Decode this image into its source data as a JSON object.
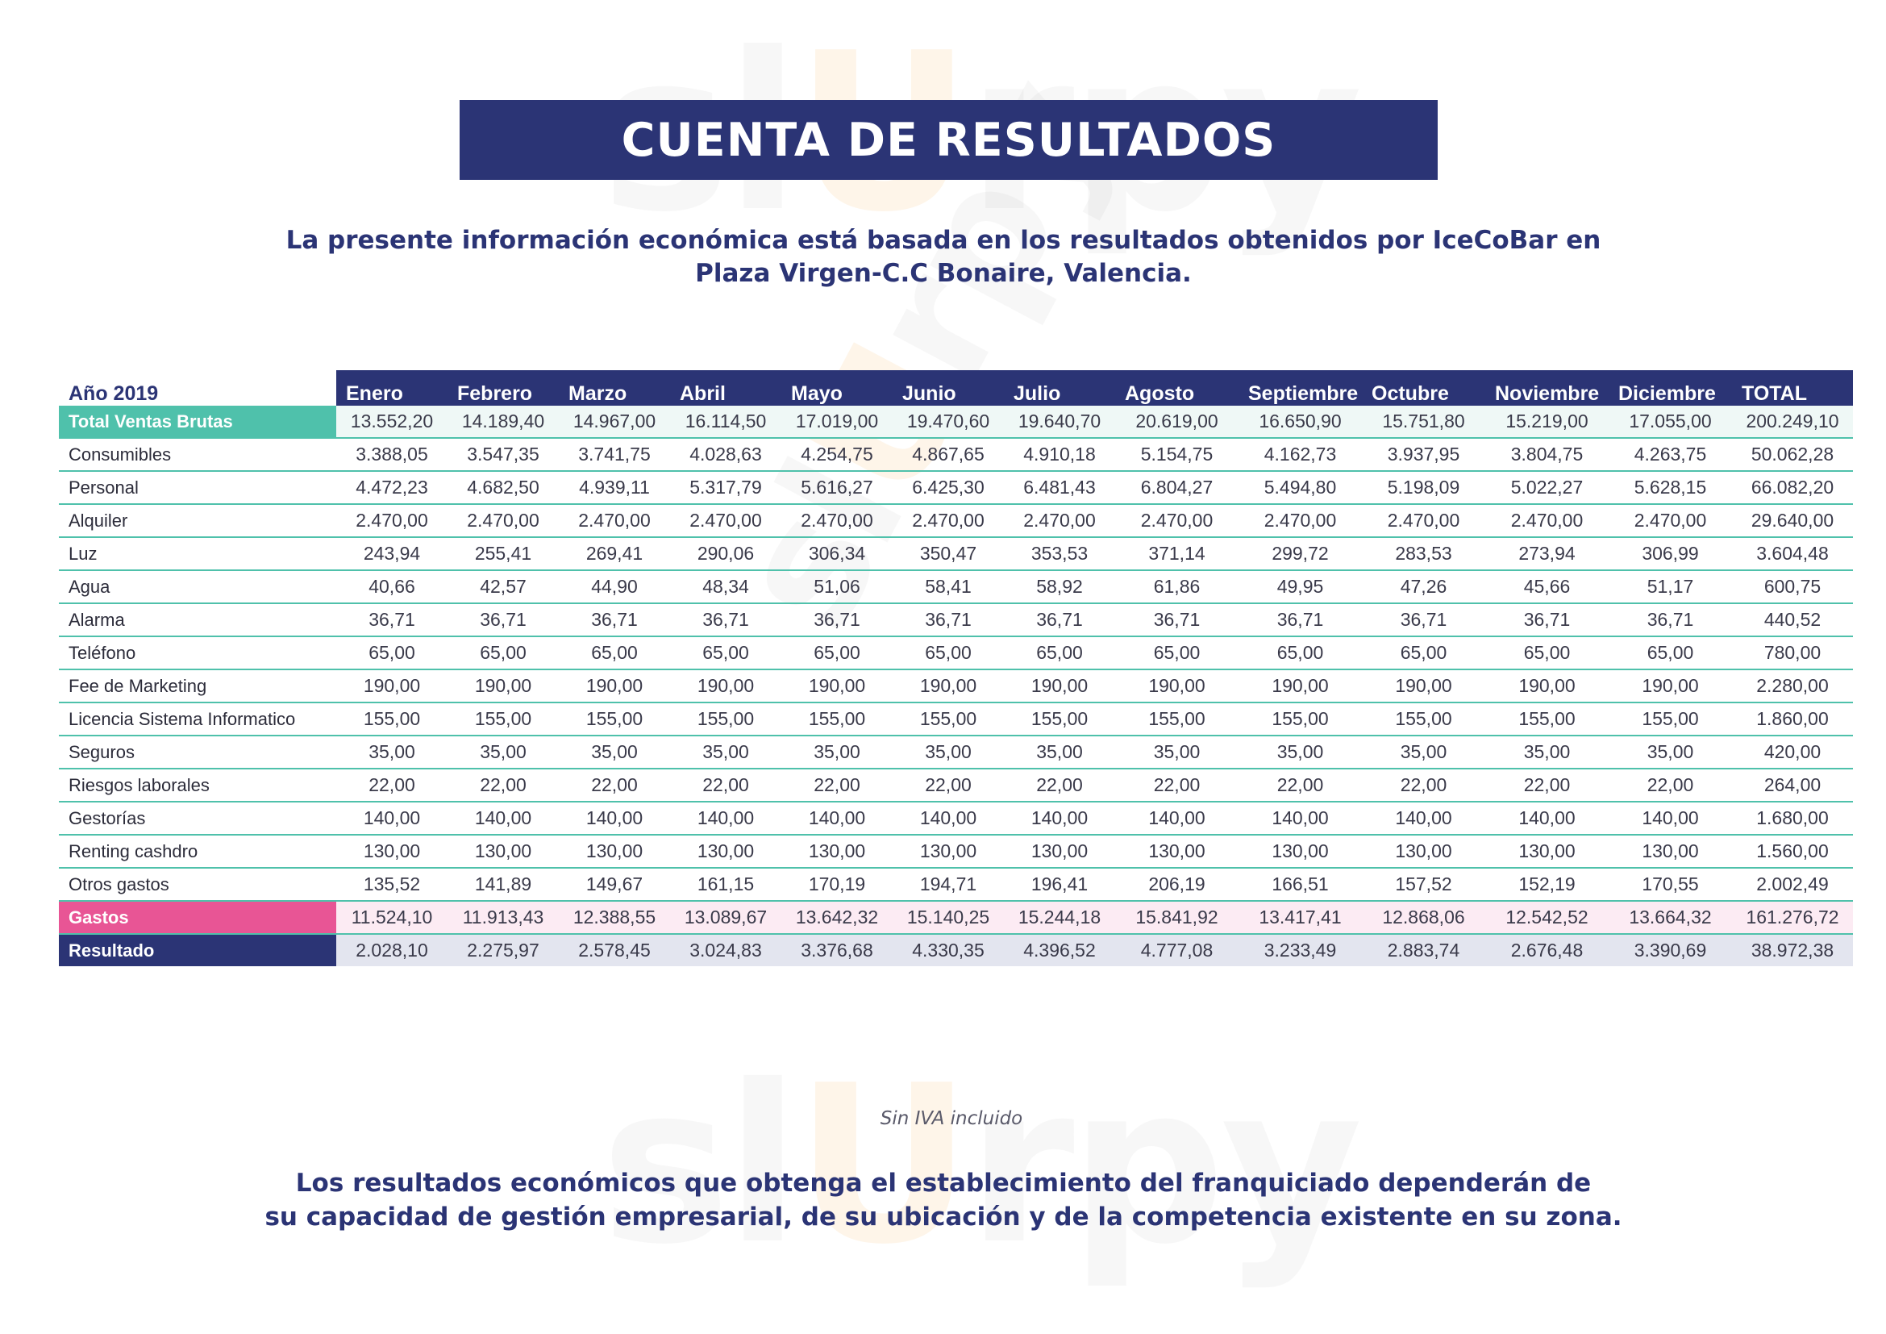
{
  "watermark": {
    "left": "sl",
    "mid": "U",
    "right": "rpy"
  },
  "header": {
    "title": "CUENTA DE RESULTADOS"
  },
  "intro": {
    "line1": "La presente información económica está basada en los resultados obtenidos por IceCoBar en",
    "line2": "Plaza Virgen-C.C Bonaire, Valencia."
  },
  "table": {
    "year_label": "Año 2019",
    "columns": [
      "Enero",
      "Febrero",
      "Marzo",
      "Abril",
      "Mayo",
      "Junio",
      "Julio",
      "Agosto",
      "Septiembre",
      "Octubre",
      "Noviembre",
      "Diciembre",
      "TOTAL"
    ],
    "rows": [
      {
        "label": "Total Ventas Brutas",
        "values": [
          "13.552,20",
          "14.189,40",
          "14.967,00",
          "16.114,50",
          "17.019,00",
          "19.470,60",
          "19.640,70",
          "20.619,00",
          "16.650,90",
          "15.751,80",
          "15.219,00",
          "17.055,00",
          "200.249,10"
        ]
      },
      {
        "label": "Consumibles",
        "values": [
          "3.388,05",
          "3.547,35",
          "3.741,75",
          "4.028,63",
          "4.254,75",
          "4.867,65",
          "4.910,18",
          "5.154,75",
          "4.162,73",
          "3.937,95",
          "3.804,75",
          "4.263,75",
          "50.062,28"
        ]
      },
      {
        "label": "Personal",
        "values": [
          "4.472,23",
          "4.682,50",
          "4.939,11",
          "5.317,79",
          "5.616,27",
          "6.425,30",
          "6.481,43",
          "6.804,27",
          "5.494,80",
          "5.198,09",
          "5.022,27",
          "5.628,15",
          "66.082,20"
        ]
      },
      {
        "label": "Alquiler",
        "values": [
          "2.470,00",
          "2.470,00",
          "2.470,00",
          "2.470,00",
          "2.470,00",
          "2.470,00",
          "2.470,00",
          "2.470,00",
          "2.470,00",
          "2.470,00",
          "2.470,00",
          "2.470,00",
          "29.640,00"
        ]
      },
      {
        "label": "Luz",
        "values": [
          "243,94",
          "255,41",
          "269,41",
          "290,06",
          "306,34",
          "350,47",
          "353,53",
          "371,14",
          "299,72",
          "283,53",
          "273,94",
          "306,99",
          "3.604,48"
        ]
      },
      {
        "label": "Agua",
        "values": [
          "40,66",
          "42,57",
          "44,90",
          "48,34",
          "51,06",
          "58,41",
          "58,92",
          "61,86",
          "49,95",
          "47,26",
          "45,66",
          "51,17",
          "600,75"
        ]
      },
      {
        "label": "Alarma",
        "values": [
          "36,71",
          "36,71",
          "36,71",
          "36,71",
          "36,71",
          "36,71",
          "36,71",
          "36,71",
          "36,71",
          "36,71",
          "36,71",
          "36,71",
          "440,52"
        ]
      },
      {
        "label": "Teléfono",
        "values": [
          "65,00",
          "65,00",
          "65,00",
          "65,00",
          "65,00",
          "65,00",
          "65,00",
          "65,00",
          "65,00",
          "65,00",
          "65,00",
          "65,00",
          "780,00"
        ]
      },
      {
        "label": "Fee de Marketing",
        "values": [
          "190,00",
          "190,00",
          "190,00",
          "190,00",
          "190,00",
          "190,00",
          "190,00",
          "190,00",
          "190,00",
          "190,00",
          "190,00",
          "190,00",
          "2.280,00"
        ]
      },
      {
        "label": "Licencia Sistema Informatico",
        "values": [
          "155,00",
          "155,00",
          "155,00",
          "155,00",
          "155,00",
          "155,00",
          "155,00",
          "155,00",
          "155,00",
          "155,00",
          "155,00",
          "155,00",
          "1.860,00"
        ]
      },
      {
        "label": "Seguros",
        "values": [
          "35,00",
          "35,00",
          "35,00",
          "35,00",
          "35,00",
          "35,00",
          "35,00",
          "35,00",
          "35,00",
          "35,00",
          "35,00",
          "35,00",
          "420,00"
        ]
      },
      {
        "label": "Riesgos laborales",
        "values": [
          "22,00",
          "22,00",
          "22,00",
          "22,00",
          "22,00",
          "22,00",
          "22,00",
          "22,00",
          "22,00",
          "22,00",
          "22,00",
          "22,00",
          "264,00"
        ]
      },
      {
        "label": "Gestorías",
        "values": [
          "140,00",
          "140,00",
          "140,00",
          "140,00",
          "140,00",
          "140,00",
          "140,00",
          "140,00",
          "140,00",
          "140,00",
          "140,00",
          "140,00",
          "1.680,00"
        ]
      },
      {
        "label": "Renting cashdro",
        "values": [
          "130,00",
          "130,00",
          "130,00",
          "130,00",
          "130,00",
          "130,00",
          "130,00",
          "130,00",
          "130,00",
          "130,00",
          "130,00",
          "130,00",
          "1.560,00"
        ]
      },
      {
        "label": "Otros gastos",
        "values": [
          "135,52",
          "141,89",
          "149,67",
          "161,15",
          "170,19",
          "194,71",
          "196,41",
          "206,19",
          "166,51",
          "157,52",
          "152,19",
          "170,55",
          "2.002,49"
        ]
      },
      {
        "label": "Gastos",
        "values": [
          "11.524,10",
          "11.913,43",
          "12.388,55",
          "13.089,67",
          "13.642,32",
          "15.140,25",
          "15.244,18",
          "15.841,92",
          "13.417,41",
          "12.868,06",
          "12.542,52",
          "13.664,32",
          "161.276,72"
        ]
      },
      {
        "label": "Resultado",
        "values": [
          "2.028,10",
          "2.275,97",
          "2.578,45",
          "3.024,83",
          "3.376,68",
          "4.330,35",
          "4.396,52",
          "4.777,08",
          "3.233,49",
          "2.883,74",
          "2.676,48",
          "3.390,69",
          "38.972,38"
        ]
      }
    ]
  },
  "note": "Sin IVA incluido",
  "disclaimer": {
    "line1": "Los resultados económicos que obtenga el establecimiento del franquiciado dependerán de",
    "line2": "su capacidad de gestión empresarial, de su ubicación y de la competencia existente en su zona."
  },
  "colors": {
    "navy": "#2b3475",
    "teal": "#4fc1ab",
    "pink": "#e85595"
  }
}
